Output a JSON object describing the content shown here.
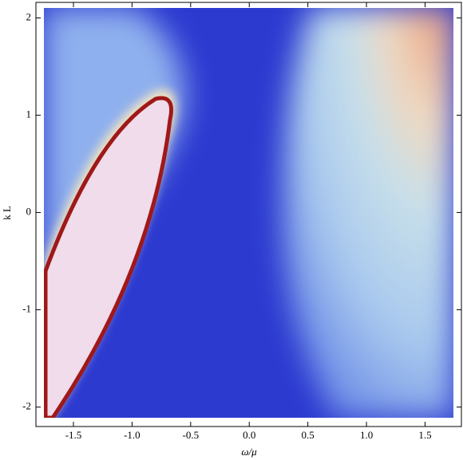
{
  "chart_data": {
    "type": "density",
    "x_label": "ω/μ",
    "y_label": "k L",
    "xlim": [
      -1.82,
      1.81
    ],
    "ylim": [
      -2.2,
      2.16
    ],
    "xticks": [
      -1.5,
      {
        "value": -1,
        "label": "-1.0"
      },
      -0.5,
      {
        "value": 0,
        "label": "0.0"
      },
      0.5,
      {
        "value": 1,
        "label": "1.0"
      },
      1.5
    ],
    "yticks": [
      -2,
      -1,
      0,
      1,
      2
    ]
  }
}
